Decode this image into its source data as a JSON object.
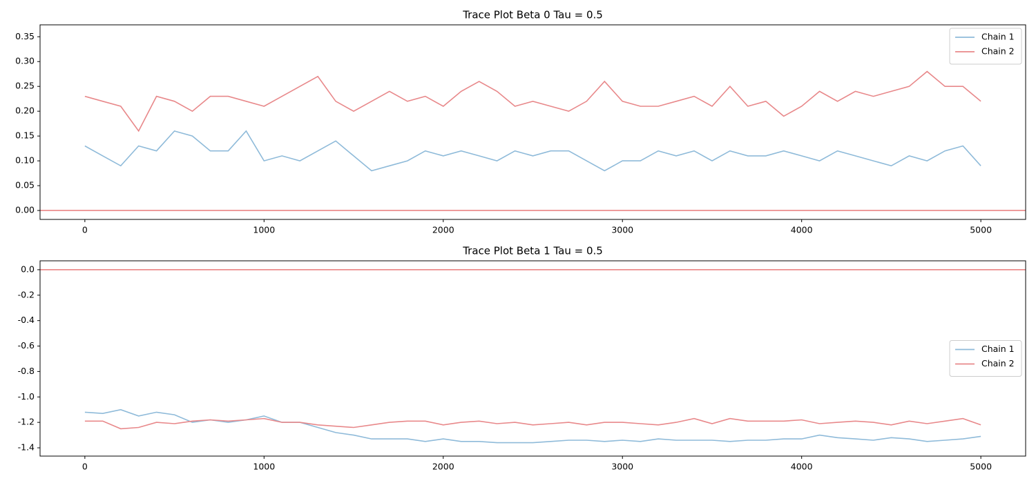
{
  "chart_data": [
    {
      "type": "line",
      "title": "Trace Plot Beta 0 Tau = 0.5",
      "x": [
        0,
        100,
        200,
        300,
        400,
        500,
        600,
        700,
        800,
        900,
        1000,
        1100,
        1200,
        1300,
        1400,
        1500,
        1600,
        1700,
        1800,
        1900,
        2000,
        2100,
        2200,
        2300,
        2400,
        2500,
        2600,
        2700,
        2800,
        2900,
        3000,
        3100,
        3200,
        3300,
        3400,
        3500,
        3600,
        3700,
        3800,
        3900,
        4000,
        4100,
        4200,
        4300,
        4400,
        4500,
        4600,
        4700,
        4800,
        4900,
        5000
      ],
      "series": [
        {
          "name": "Chain 1",
          "color": "#8ebad9",
          "values": [
            0.13,
            0.11,
            0.09,
            0.13,
            0.12,
            0.16,
            0.15,
            0.12,
            0.12,
            0.16,
            0.1,
            0.11,
            0.1,
            0.12,
            0.14,
            0.11,
            0.08,
            0.09,
            0.1,
            0.12,
            0.11,
            0.12,
            0.11,
            0.1,
            0.12,
            0.11,
            0.12,
            0.12,
            0.1,
            0.08,
            0.1,
            0.1,
            0.12,
            0.11,
            0.12,
            0.1,
            0.12,
            0.11,
            0.11,
            0.12,
            0.11,
            0.1,
            0.12,
            0.11,
            0.1,
            0.09,
            0.11,
            0.1,
            0.12,
            0.13,
            0.09
          ]
        },
        {
          "name": "Chain 2",
          "color": "#e8888a",
          "values": [
            0.23,
            0.22,
            0.21,
            0.16,
            0.23,
            0.22,
            0.2,
            0.23,
            0.23,
            0.22,
            0.21,
            0.23,
            0.25,
            0.27,
            0.22,
            0.2,
            0.22,
            0.24,
            0.22,
            0.23,
            0.21,
            0.24,
            0.26,
            0.24,
            0.21,
            0.22,
            0.21,
            0.2,
            0.22,
            0.26,
            0.22,
            0.21,
            0.21,
            0.22,
            0.23,
            0.21,
            0.25,
            0.21,
            0.22,
            0.19,
            0.21,
            0.24,
            0.22,
            0.24,
            0.23,
            0.24,
            0.25,
            0.28,
            0.25,
            0.25,
            0.22
          ]
        }
      ],
      "xlim": [
        -250,
        5250
      ],
      "ylim": [
        -0.018,
        0.374
      ],
      "xticks": [
        0,
        1000,
        2000,
        3000,
        4000,
        5000
      ],
      "yticks": [
        {
          "value": 0,
          "label": "0.00"
        },
        0.05,
        {
          "value": 0.1,
          "label": "0.10"
        },
        0.15,
        {
          "value": 0.2,
          "label": "0.20"
        },
        0.25,
        {
          "value": 0.3,
          "label": "0.30"
        },
        0.35
      ],
      "hline": 0,
      "hline_color": "#e87a7a",
      "legend": "upper right"
    },
    {
      "type": "line",
      "title": "Trace Plot Beta 1 Tau = 0.5",
      "x": [
        0,
        100,
        200,
        300,
        400,
        500,
        600,
        700,
        800,
        900,
        1000,
        1100,
        1200,
        1300,
        1400,
        1500,
        1600,
        1700,
        1800,
        1900,
        2000,
        2100,
        2200,
        2300,
        2400,
        2500,
        2600,
        2700,
        2800,
        2900,
        3000,
        3100,
        3200,
        3300,
        3400,
        3500,
        3600,
        3700,
        3800,
        3900,
        4000,
        4100,
        4200,
        4300,
        4400,
        4500,
        4600,
        4700,
        4800,
        4900,
        5000
      ],
      "series": [
        {
          "name": "Chain 1",
          "color": "#8ebad9",
          "values": [
            -1.12,
            -1.13,
            -1.1,
            -1.15,
            -1.12,
            -1.14,
            -1.2,
            -1.18,
            -1.2,
            -1.18,
            -1.15,
            -1.2,
            -1.2,
            -1.24,
            -1.28,
            -1.3,
            -1.33,
            -1.33,
            -1.33,
            -1.35,
            -1.33,
            -1.35,
            -1.35,
            -1.36,
            -1.36,
            -1.36,
            -1.35,
            -1.34,
            -1.34,
            -1.35,
            -1.34,
            -1.35,
            -1.33,
            -1.34,
            -1.34,
            -1.34,
            -1.35,
            -1.34,
            -1.34,
            -1.33,
            -1.33,
            -1.3,
            -1.32,
            -1.33,
            -1.34,
            -1.32,
            -1.33,
            -1.35,
            -1.34,
            -1.33,
            -1.31
          ]
        },
        {
          "name": "Chain 2",
          "color": "#e8888a",
          "values": [
            -1.19,
            -1.19,
            -1.25,
            -1.24,
            -1.2,
            -1.21,
            -1.19,
            -1.18,
            -1.19,
            -1.18,
            -1.17,
            -1.2,
            -1.2,
            -1.22,
            -1.23,
            -1.24,
            -1.22,
            -1.2,
            -1.19,
            -1.19,
            -1.22,
            -1.2,
            -1.19,
            -1.21,
            -1.2,
            -1.22,
            -1.21,
            -1.2,
            -1.22,
            -1.2,
            -1.2,
            -1.21,
            -1.22,
            -1.2,
            -1.17,
            -1.21,
            -1.17,
            -1.19,
            -1.19,
            -1.19,
            -1.18,
            -1.21,
            -1.2,
            -1.19,
            -1.2,
            -1.22,
            -1.19,
            -1.21,
            -1.19,
            -1.17,
            -1.22
          ]
        }
      ],
      "xlim": [
        -250,
        5250
      ],
      "ylim": [
        -1.465,
        0.07
      ],
      "xticks": [
        0,
        1000,
        2000,
        3000,
        4000,
        5000
      ],
      "yticks": [
        {
          "value": 0,
          "label": "0.0"
        },
        -0.2,
        -0.4,
        -0.6,
        -0.8,
        {
          "value": -1,
          "label": "-1.0"
        },
        -1.2,
        -1.4
      ],
      "hline": 0,
      "hline_color": "#e87a7a",
      "legend": "center right"
    }
  ]
}
